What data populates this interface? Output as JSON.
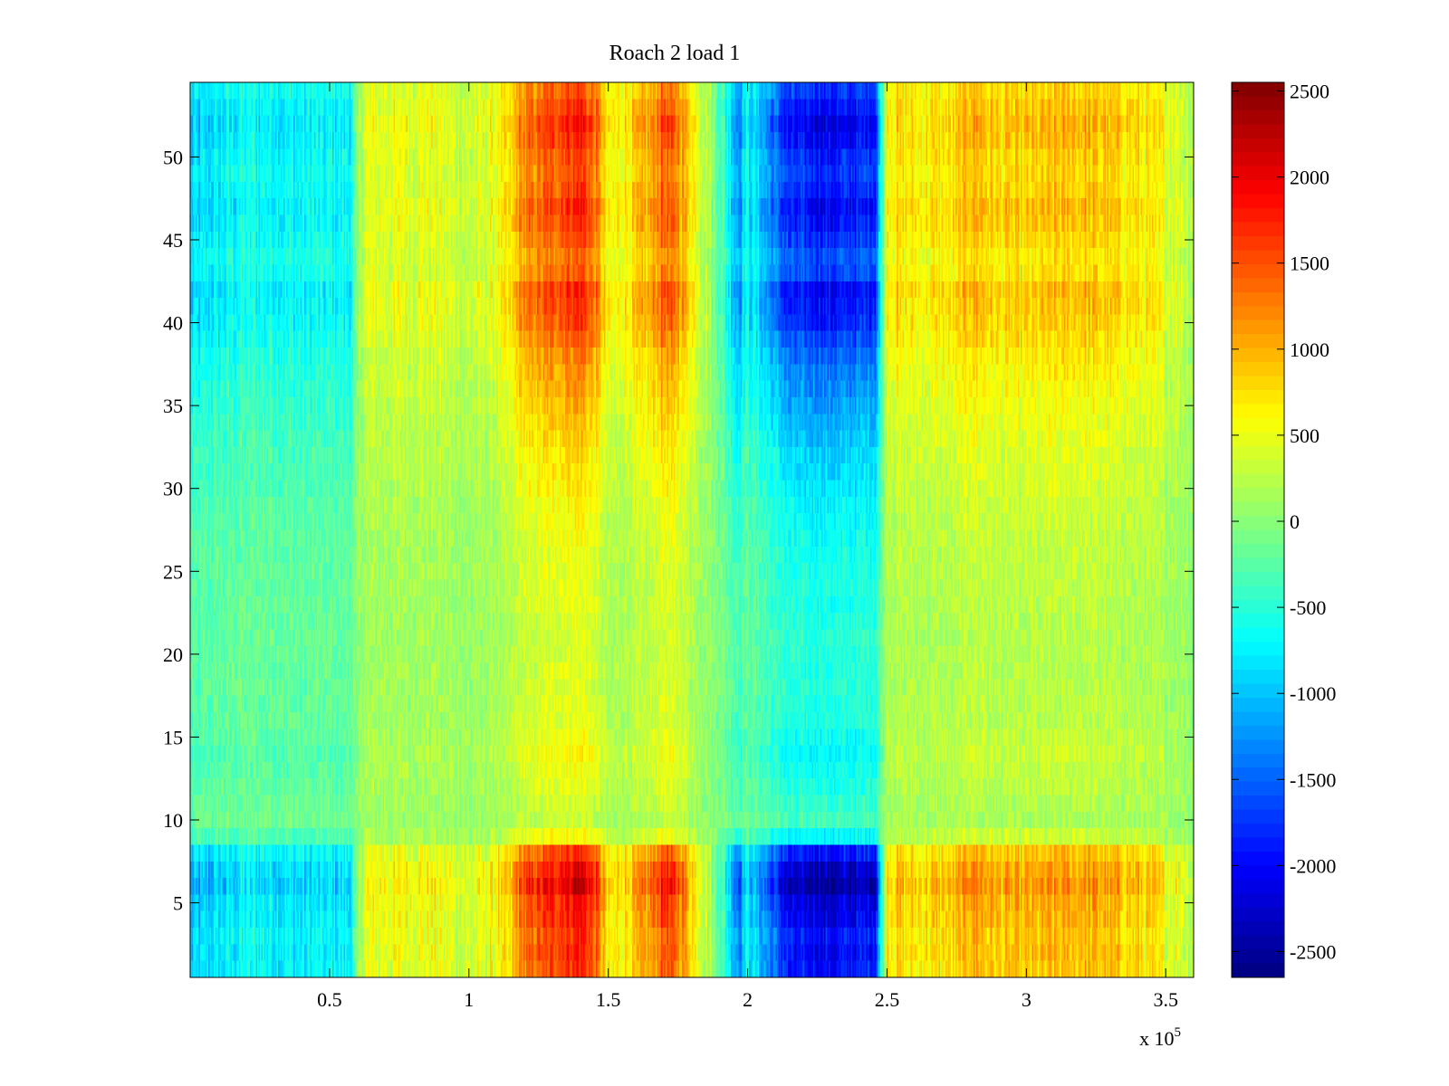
{
  "chart_data": {
    "type": "heatmap",
    "title": "Roach 2 load 1",
    "x_multiplier": {
      "base": "x 10",
      "exponent": "5"
    },
    "x_range": [
      0,
      360000
    ],
    "y_range": [
      0.5,
      54.5
    ],
    "grid": false,
    "colormap": "jet",
    "x_ticks": [
      {
        "value": 50000,
        "label": "0.5"
      },
      {
        "value": 100000,
        "label": "1"
      },
      {
        "value": 150000,
        "label": "1.5"
      },
      {
        "value": 200000,
        "label": "2"
      },
      {
        "value": 250000,
        "label": "2.5"
      },
      {
        "value": 300000,
        "label": "3"
      },
      {
        "value": 350000,
        "label": "3.5"
      }
    ],
    "y_ticks": [
      {
        "value": 5,
        "label": "5"
      },
      {
        "value": 10,
        "label": "10"
      },
      {
        "value": 15,
        "label": "15"
      },
      {
        "value": 20,
        "label": "20"
      },
      {
        "value": 25,
        "label": "25"
      },
      {
        "value": 30,
        "label": "30"
      },
      {
        "value": 35,
        "label": "35"
      },
      {
        "value": 40,
        "label": "40"
      },
      {
        "value": 45,
        "label": "45"
      },
      {
        "value": 50,
        "label": "50"
      }
    ],
    "colorbar": {
      "range": [
        -2650,
        2550
      ],
      "ticks": [
        {
          "value": 2500,
          "label": "2500"
        },
        {
          "value": 2000,
          "label": "2000"
        },
        {
          "value": 1500,
          "label": "1500"
        },
        {
          "value": 1000,
          "label": "1000"
        },
        {
          "value": 500,
          "label": "500"
        },
        {
          "value": 0,
          "label": "0"
        },
        {
          "value": -500,
          "label": "-500"
        },
        {
          "value": -1000,
          "label": "-1000"
        },
        {
          "value": -1500,
          "label": "-1500"
        },
        {
          "value": -2000,
          "label": "-2000"
        },
        {
          "value": -2500,
          "label": "-2500"
        }
      ]
    },
    "rows": 54,
    "column_profile": {
      "x": [
        0,
        10000,
        20000,
        40000,
        58000,
        62000,
        80000,
        100000,
        115000,
        118000,
        125000,
        140000,
        147000,
        150000,
        158000,
        165000,
        170000,
        175000,
        180000,
        190000,
        197000,
        199000,
        205000,
        215000,
        230000,
        246000,
        250000,
        260000,
        275000,
        280000,
        290000,
        305000,
        320000,
        340000,
        360000
      ],
      "value": [
        -900,
        -800,
        -600,
        -700,
        -650,
        400,
        500,
        300,
        650,
        1100,
        1300,
        1700,
        1100,
        500,
        700,
        1000,
        1400,
        1200,
        700,
        -200,
        -1200,
        -700,
        -1000,
        -1800,
        -1900,
        -1700,
        700,
        650,
        700,
        1000,
        750,
        800,
        900,
        700,
        300
      ]
    },
    "row_weights": [
      1.05,
      1.1,
      1.05,
      1.15,
      1.2,
      1.35,
      1.25,
      1.05,
      0.4,
      0.2,
      0.25,
      0.3,
      0.35,
      0.4,
      0.35,
      0.3,
      0.3,
      0.28,
      0.28,
      0.27,
      0.27,
      0.28,
      0.3,
      0.3,
      0.32,
      0.33,
      0.35,
      0.38,
      0.4,
      0.45,
      0.48,
      0.5,
      0.55,
      0.6,
      0.65,
      0.7,
      0.75,
      0.8,
      0.9,
      1.0,
      1.05,
      1.1,
      0.9,
      0.85,
      0.95,
      1.05,
      1.1,
      1.0,
      0.95,
      1.0,
      1.1,
      1.15,
      1.05,
      0.95
    ]
  }
}
